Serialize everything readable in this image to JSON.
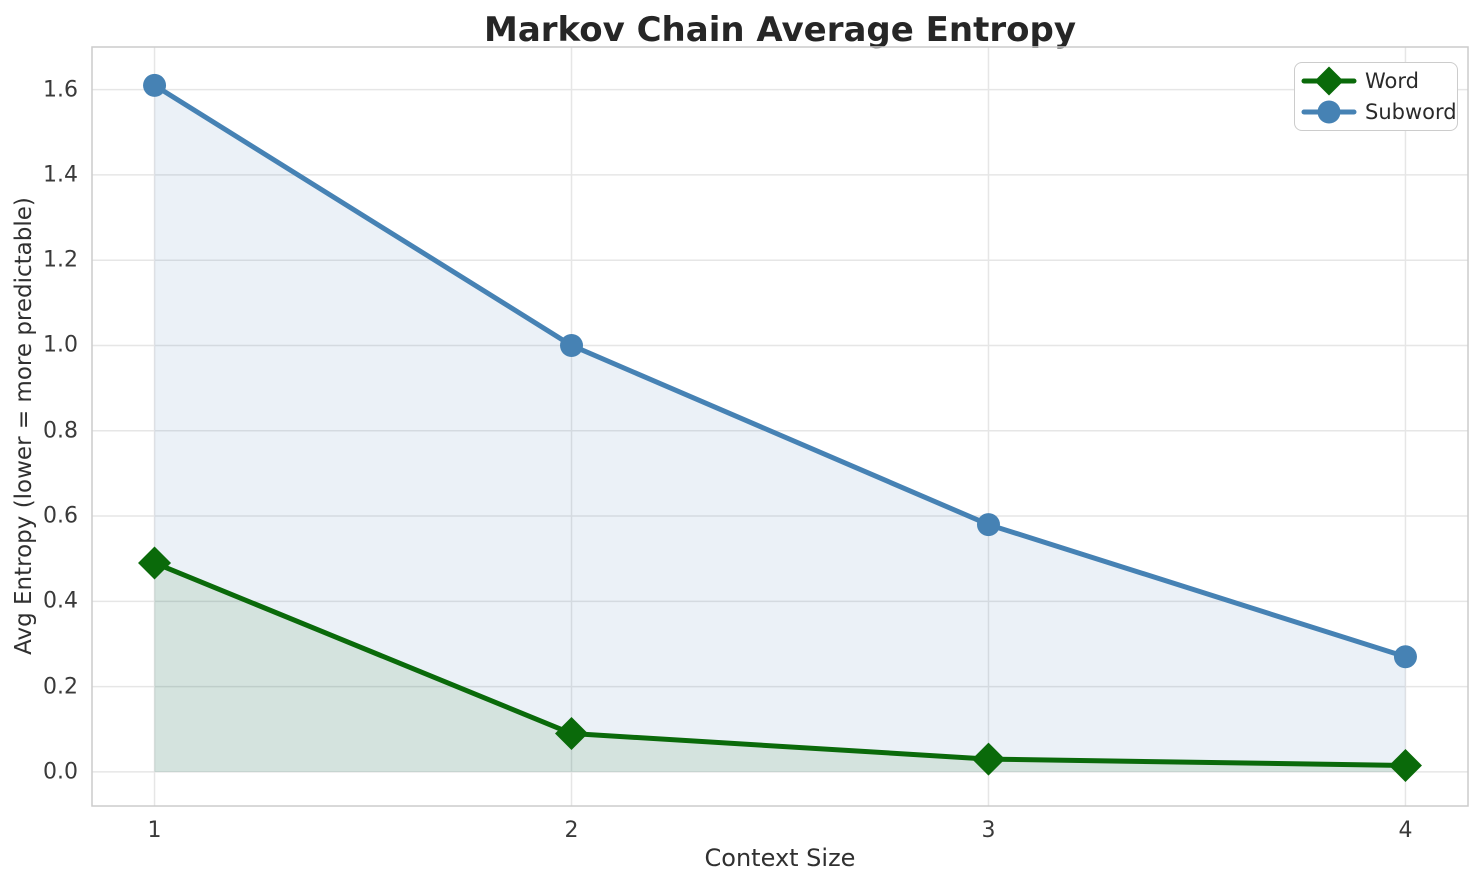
{
  "chart_data": {
    "type": "line",
    "title": "Markov Chain Average Entropy",
    "xlabel": "Context Size",
    "ylabel": "Avg Entropy (lower = more predictable)",
    "x": [
      1,
      2,
      3,
      4
    ],
    "xticks": [
      {
        "label": "1",
        "value": 1
      },
      {
        "label": "2",
        "value": 2
      },
      {
        "label": "3",
        "value": 3
      },
      {
        "label": "4",
        "value": 4
      }
    ],
    "yticks": [
      {
        "label": "0.0",
        "value": 0.0
      },
      {
        "label": "0.2",
        "value": 0.2
      },
      {
        "label": "0.4",
        "value": 0.4
      },
      {
        "label": "0.6",
        "value": 0.6
      },
      {
        "label": "0.8",
        "value": 0.8
      },
      {
        "label": "1.0",
        "value": 1.0
      },
      {
        "label": "1.2",
        "value": 1.2
      },
      {
        "label": "1.4",
        "value": 1.4
      },
      {
        "label": "1.6",
        "value": 1.6
      }
    ],
    "xlim": [
      0.85,
      4.15
    ],
    "ylim": [
      -0.08,
      1.7
    ],
    "grid": true,
    "legend_position": "upper right",
    "series": [
      {
        "name": "Word",
        "values": [
          0.49,
          0.09,
          0.03,
          0.015
        ],
        "color": "#0a6a0a",
        "marker": "diamond",
        "fill_to_zero": true,
        "fill_opacity": 0.1
      },
      {
        "name": "Subword",
        "values": [
          1.61,
          1.0,
          0.58,
          0.27
        ],
        "color": "#4682b4",
        "marker": "circle",
        "fill_to_zero": true,
        "fill_opacity": 0.11
      }
    ],
    "colors": {
      "grid": "#e6e6e6",
      "spine": "#cccccc",
      "text": "#262626"
    }
  }
}
